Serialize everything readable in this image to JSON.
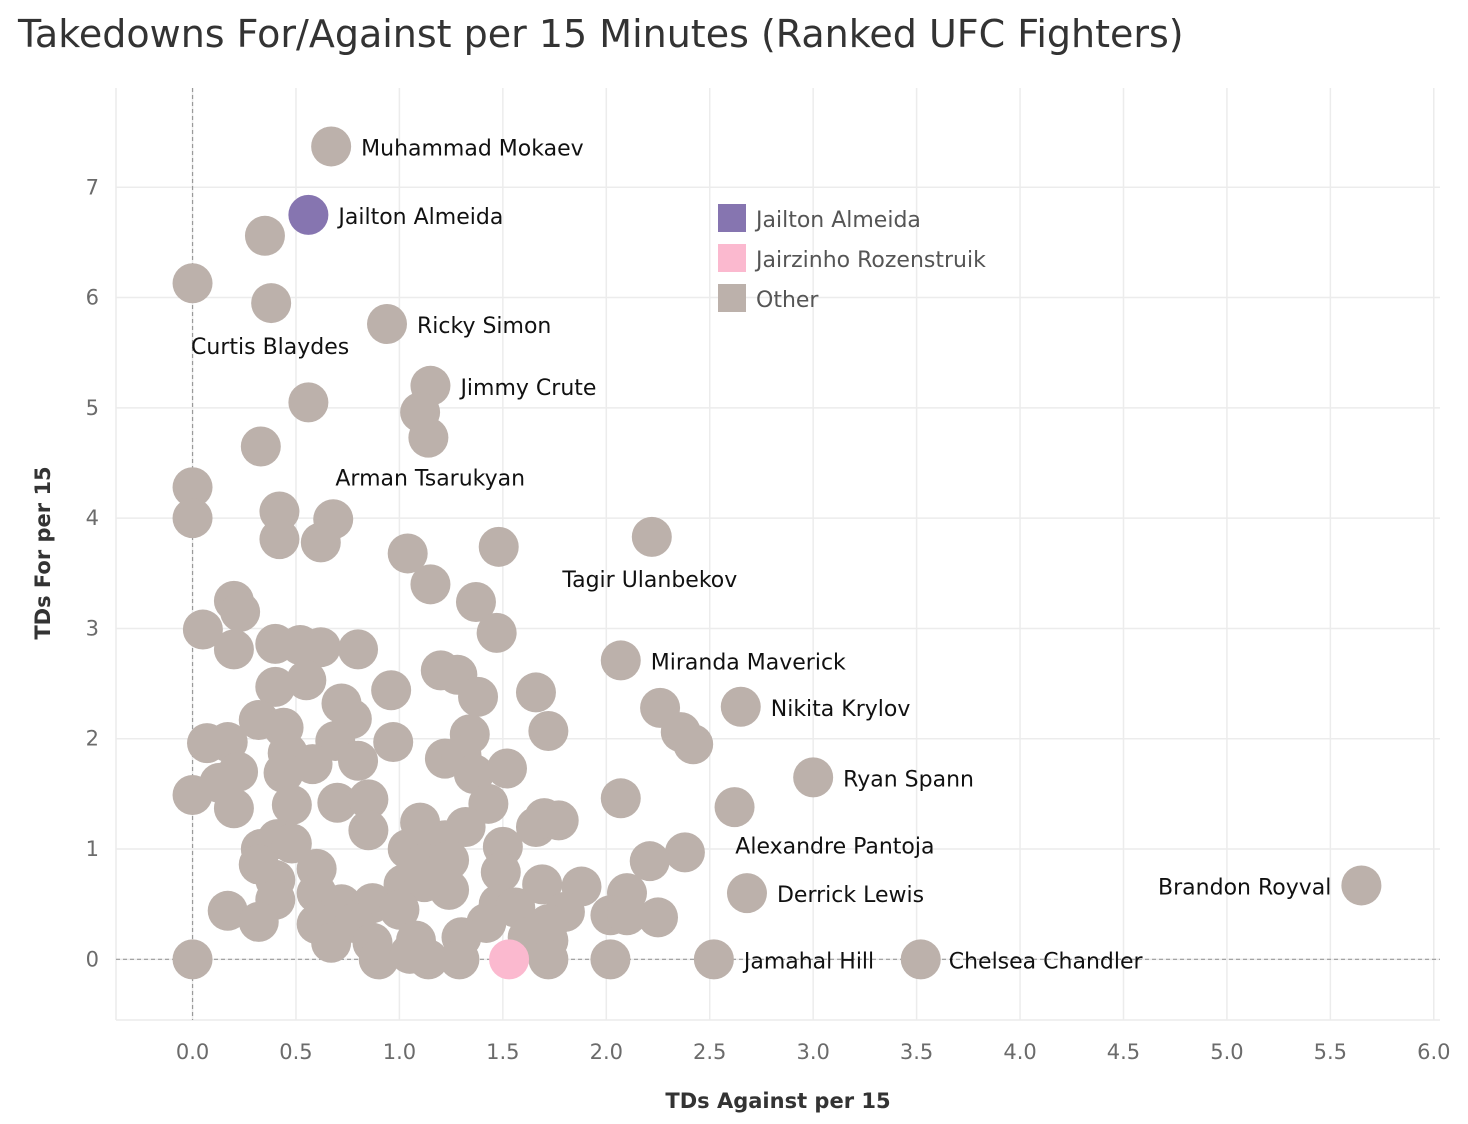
{
  "colors": {
    "highlight": "#8675b0",
    "compare": "#fbb9cf",
    "other": "#bcb1ab"
  },
  "chart_data": {
    "type": "scatter",
    "title": "Takedowns For/Against per 15 Minutes (Ranked UFC Fighters)",
    "xlabel": "TDs Against per 15",
    "ylabel": "TDs For per 15",
    "xlim": [
      -0.37,
      6.03
    ],
    "ylim": [
      -0.55,
      7.9
    ],
    "xticks": [
      "0.0",
      "0.5",
      "1.0",
      "1.5",
      "2.0",
      "2.5",
      "3.0",
      "3.5",
      "4.0",
      "4.5",
      "5.0",
      "5.5",
      "6.0"
    ],
    "yticks": [
      "0",
      "1",
      "2",
      "3",
      "4",
      "5",
      "6",
      "7"
    ],
    "grid": true,
    "legend": {
      "placement": "top-center",
      "entries": [
        {
          "label": "Jailton Almeida",
          "color": "#8675b0"
        },
        {
          "label": "Jairzinho Rozenstruik",
          "color": "#fbb9cf"
        },
        {
          "label": "Other",
          "color": "#bcb1ab"
        }
      ]
    },
    "series": [
      {
        "name": "Jailton Almeida",
        "points": [
          {
            "x": 0.56,
            "y": 6.75,
            "label": "Jailton Almeida"
          }
        ]
      },
      {
        "name": "Jairzinho Rozenstruik",
        "points": [
          {
            "x": 1.53,
            "y": 0.0
          }
        ]
      },
      {
        "name": "Other",
        "points": [
          {
            "x": 0.67,
            "y": 7.37,
            "label": "Muhammad Mokaev"
          },
          {
            "x": 0.35,
            "y": 6.56
          },
          {
            "x": 0.0,
            "y": 6.13
          },
          {
            "x": 0.38,
            "y": 5.95,
            "label": "Curtis Blaydes"
          },
          {
            "x": 0.94,
            "y": 5.76,
            "label": "Ricky Simon"
          },
          {
            "x": 1.15,
            "y": 5.2,
            "label": "Jimmy Crute"
          },
          {
            "x": 1.1,
            "y": 4.96
          },
          {
            "x": 1.14,
            "y": 4.73
          },
          {
            "x": 0.56,
            "y": 5.05
          },
          {
            "x": 0.33,
            "y": 4.65
          },
          {
            "x": 0.0,
            "y": 4.28
          },
          {
            "x": 0.0,
            "y": 4.0
          },
          {
            "x": 0.42,
            "y": 4.06
          },
          {
            "x": 0.42,
            "y": 3.81
          },
          {
            "x": 0.68,
            "y": 3.99,
            "label": "Arman Tsarukyan"
          },
          {
            "x": 0.62,
            "y": 3.78
          },
          {
            "x": 1.04,
            "y": 3.68
          },
          {
            "x": 1.15,
            "y": 3.4
          },
          {
            "x": 1.48,
            "y": 3.74
          },
          {
            "x": 2.22,
            "y": 3.83,
            "label": "Tagir Ulanbekov"
          },
          {
            "x": 1.37,
            "y": 3.24
          },
          {
            "x": 1.47,
            "y": 2.96
          },
          {
            "x": 0.2,
            "y": 3.25
          },
          {
            "x": 0.23,
            "y": 3.15
          },
          {
            "x": 0.05,
            "y": 2.99
          },
          {
            "x": 0.2,
            "y": 2.81
          },
          {
            "x": 0.4,
            "y": 2.86
          },
          {
            "x": 0.52,
            "y": 2.85
          },
          {
            "x": 0.62,
            "y": 2.83
          },
          {
            "x": 0.8,
            "y": 2.81
          },
          {
            "x": 0.55,
            "y": 2.53
          },
          {
            "x": 0.4,
            "y": 2.47
          },
          {
            "x": 0.96,
            "y": 2.44
          },
          {
            "x": 1.2,
            "y": 2.62
          },
          {
            "x": 1.28,
            "y": 2.58
          },
          {
            "x": 1.38,
            "y": 2.38
          },
          {
            "x": 1.66,
            "y": 2.42
          },
          {
            "x": 2.07,
            "y": 2.71,
            "label": "Miranda Maverick"
          },
          {
            "x": 2.26,
            "y": 2.28
          },
          {
            "x": 2.65,
            "y": 2.29,
            "label": "Nikita Krylov"
          },
          {
            "x": 2.36,
            "y": 2.06
          },
          {
            "x": 2.42,
            "y": 1.95
          },
          {
            "x": 1.72,
            "y": 2.07
          },
          {
            "x": 0.72,
            "y": 2.32
          },
          {
            "x": 0.77,
            "y": 2.18
          },
          {
            "x": 0.32,
            "y": 2.17
          },
          {
            "x": 0.44,
            "y": 2.1
          },
          {
            "x": 0.07,
            "y": 1.96
          },
          {
            "x": 0.17,
            "y": 1.97
          },
          {
            "x": 0.46,
            "y": 1.87
          },
          {
            "x": 0.69,
            "y": 1.98
          },
          {
            "x": 0.97,
            "y": 1.97
          },
          {
            "x": 1.34,
            "y": 2.04
          },
          {
            "x": 1.22,
            "y": 1.82
          },
          {
            "x": 1.3,
            "y": 1.85
          },
          {
            "x": 0.58,
            "y": 1.77
          },
          {
            "x": 0.8,
            "y": 1.8
          },
          {
            "x": 0.22,
            "y": 1.7
          },
          {
            "x": 0.44,
            "y": 1.69
          },
          {
            "x": 1.36,
            "y": 1.68
          },
          {
            "x": 1.52,
            "y": 1.73
          },
          {
            "x": 3.0,
            "y": 1.65,
            "label": "Ryan Spann"
          },
          {
            "x": 0.0,
            "y": 1.49
          },
          {
            "x": 0.13,
            "y": 1.6
          },
          {
            "x": 0.2,
            "y": 1.37
          },
          {
            "x": 0.48,
            "y": 1.4
          },
          {
            "x": 0.7,
            "y": 1.42
          },
          {
            "x": 0.85,
            "y": 1.45
          },
          {
            "x": 1.43,
            "y": 1.41
          },
          {
            "x": 2.07,
            "y": 1.46
          },
          {
            "x": 2.62,
            "y": 1.38
          },
          {
            "x": 0.85,
            "y": 1.17
          },
          {
            "x": 1.1,
            "y": 1.24
          },
          {
            "x": 1.22,
            "y": 1.08
          },
          {
            "x": 1.32,
            "y": 1.2
          },
          {
            "x": 1.66,
            "y": 1.2
          },
          {
            "x": 1.7,
            "y": 1.28
          },
          {
            "x": 1.77,
            "y": 1.26
          },
          {
            "x": 0.33,
            "y": 1.0
          },
          {
            "x": 0.41,
            "y": 1.09
          },
          {
            "x": 0.48,
            "y": 1.05
          },
          {
            "x": 1.04,
            "y": 1.0
          },
          {
            "x": 1.5,
            "y": 1.02
          },
          {
            "x": 2.38,
            "y": 0.97,
            "label": "Alexandre Pantoja"
          },
          {
            "x": 0.32,
            "y": 0.86
          },
          {
            "x": 0.6,
            "y": 0.82
          },
          {
            "x": 1.12,
            "y": 0.87
          },
          {
            "x": 1.24,
            "y": 0.9
          },
          {
            "x": 2.21,
            "y": 0.89
          },
          {
            "x": 1.49,
            "y": 0.79
          },
          {
            "x": 0.4,
            "y": 0.72
          },
          {
            "x": 0.6,
            "y": 0.6
          },
          {
            "x": 1.02,
            "y": 0.68
          },
          {
            "x": 1.12,
            "y": 0.7
          },
          {
            "x": 1.24,
            "y": 0.63
          },
          {
            "x": 1.69,
            "y": 0.68
          },
          {
            "x": 1.88,
            "y": 0.66
          },
          {
            "x": 2.1,
            "y": 0.6
          },
          {
            "x": 2.68,
            "y": 0.6,
            "label": "Derrick Lewis"
          },
          {
            "x": 5.65,
            "y": 0.67,
            "label": "Brandon Royval"
          },
          {
            "x": 0.4,
            "y": 0.54
          },
          {
            "x": 0.72,
            "y": 0.5
          },
          {
            "x": 0.87,
            "y": 0.51
          },
          {
            "x": 1.0,
            "y": 0.45
          },
          {
            "x": 1.48,
            "y": 0.5
          },
          {
            "x": 1.56,
            "y": 0.47
          },
          {
            "x": 1.8,
            "y": 0.43
          },
          {
            "x": 0.17,
            "y": 0.44
          },
          {
            "x": 0.32,
            "y": 0.34
          },
          {
            "x": 0.6,
            "y": 0.32
          },
          {
            "x": 0.78,
            "y": 0.33
          },
          {
            "x": 1.42,
            "y": 0.33
          },
          {
            "x": 1.72,
            "y": 0.32
          },
          {
            "x": 2.02,
            "y": 0.4
          },
          {
            "x": 2.1,
            "y": 0.4
          },
          {
            "x": 2.25,
            "y": 0.38
          },
          {
            "x": 0.67,
            "y": 0.15
          },
          {
            "x": 0.87,
            "y": 0.15
          },
          {
            "x": 1.08,
            "y": 0.17
          },
          {
            "x": 1.3,
            "y": 0.2
          },
          {
            "x": 1.62,
            "y": 0.2
          },
          {
            "x": 1.72,
            "y": 0.17
          },
          {
            "x": 0.0,
            "y": 0.0
          },
          {
            "x": 0.9,
            "y": 0.0
          },
          {
            "x": 1.05,
            "y": 0.05
          },
          {
            "x": 1.14,
            "y": 0.0
          },
          {
            "x": 1.29,
            "y": 0.0
          },
          {
            "x": 1.72,
            "y": 0.0
          },
          {
            "x": 2.02,
            "y": 0.0
          },
          {
            "x": 2.52,
            "y": 0.0,
            "label": "Jamahal Hill"
          },
          {
            "x": 3.52,
            "y": 0.0,
            "label": "Chelsea Chandler"
          }
        ]
      }
    ]
  }
}
